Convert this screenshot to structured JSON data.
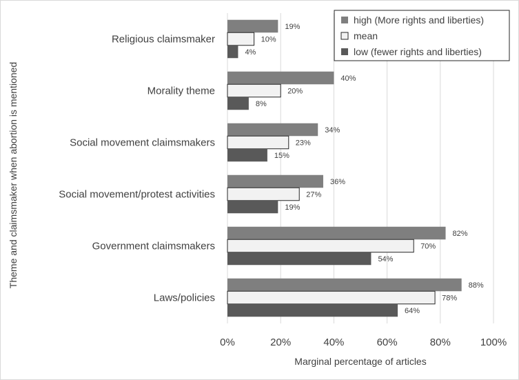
{
  "chart_data": {
    "type": "bar",
    "orientation": "horizontal",
    "title": "",
    "xlabel": "Marginal percentage of articles",
    "ylabel": "Theme and claimsmaker when abortion is mentioned",
    "xlim": [
      0,
      100
    ],
    "x_ticks": [
      "0%",
      "20%",
      "40%",
      "60%",
      "80%",
      "100%"
    ],
    "x_tick_values": [
      0,
      20,
      40,
      60,
      80,
      100
    ],
    "grid": true,
    "legend_position": "top-right",
    "categories": [
      "Religious claimsmaker",
      "Morality theme",
      "Social movement claimsmakers",
      "Social movement/protest activities",
      "Government claimsmakers",
      "Laws/policies"
    ],
    "series": [
      {
        "name": "high (More rights and liberties)",
        "color": "#7f7f7f",
        "values": [
          19,
          40,
          34,
          36,
          82,
          88
        ],
        "labels": [
          "19%",
          "40%",
          "34%",
          "36%",
          "82%",
          "88%"
        ]
      },
      {
        "name": "mean",
        "color": "#f2f2f2",
        "values": [
          10,
          20,
          23,
          27,
          70,
          78
        ],
        "labels": [
          "10%",
          "20%",
          "23%",
          "27%",
          "70%",
          "78%"
        ]
      },
      {
        "name": "low (fewer rights and liberties)",
        "color": "#595959",
        "values": [
          4,
          8,
          15,
          19,
          54,
          64
        ],
        "labels": [
          "4%",
          "8%",
          "15%",
          "19%",
          "54%",
          "64%"
        ]
      }
    ]
  }
}
